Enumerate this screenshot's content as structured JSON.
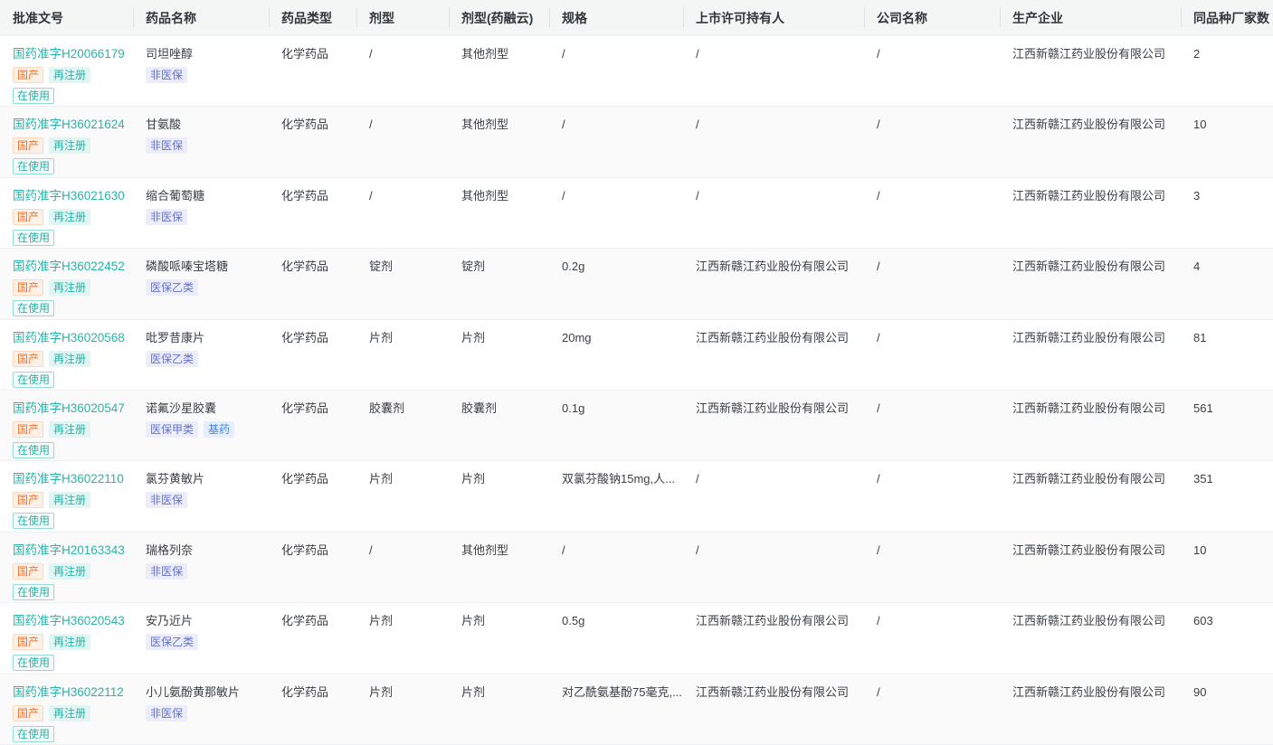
{
  "colors": {
    "accent_teal": "#2bb3a9",
    "tag_orange": "#f0722a",
    "tag_purple": "#6472d2",
    "tag_blue": "#4585e5",
    "header_bg": "#f4f6f6",
    "stripe_bg": "#fafafa",
    "row_border": "#ecf0f2"
  },
  "table": {
    "columns": [
      {
        "key": "approval",
        "label": "批准文号"
      },
      {
        "key": "name",
        "label": "药品名称"
      },
      {
        "key": "type",
        "label": "药品类型"
      },
      {
        "key": "form",
        "label": "剂型"
      },
      {
        "key": "form_yry",
        "label": "剂型(药融云)"
      },
      {
        "key": "spec",
        "label": "规格"
      },
      {
        "key": "holder",
        "label": "上市许可持有人"
      },
      {
        "key": "company",
        "label": "公司名称"
      },
      {
        "key": "manufacturer",
        "label": "生产企业"
      },
      {
        "key": "same_count",
        "label": "同品种厂家数"
      }
    ],
    "rows": [
      {
        "approval_no": "国药准字H20066179",
        "approval_tags": [
          {
            "label": "国产",
            "type": "orange",
            "name": "tag-domestic"
          },
          {
            "label": "再注册",
            "type": "teal",
            "name": "tag-reregistered"
          },
          {
            "label": "在使用",
            "type": "teal-outline",
            "name": "tag-in-use"
          }
        ],
        "name": "司坦唑醇",
        "name_tags": [
          {
            "label": "非医保",
            "type": "purple",
            "name": "tag-non-medicare"
          }
        ],
        "type": "化学药品",
        "form": "/",
        "form_yry": "其他剂型",
        "spec": "/",
        "holder": "/",
        "company": "/",
        "manufacturer": "江西新赣江药业股份有限公司",
        "same_count": "2"
      },
      {
        "approval_no": "国药准字H36021624",
        "approval_tags": [
          {
            "label": "国产",
            "type": "orange",
            "name": "tag-domestic"
          },
          {
            "label": "再注册",
            "type": "teal",
            "name": "tag-reregistered"
          },
          {
            "label": "在使用",
            "type": "teal-outline",
            "name": "tag-in-use"
          }
        ],
        "name": "甘氨酸",
        "name_tags": [
          {
            "label": "非医保",
            "type": "purple",
            "name": "tag-non-medicare"
          }
        ],
        "type": "化学药品",
        "form": "/",
        "form_yry": "其他剂型",
        "spec": "/",
        "holder": "/",
        "company": "/",
        "manufacturer": "江西新赣江药业股份有限公司",
        "same_count": "10"
      },
      {
        "approval_no": "国药准字H36021630",
        "approval_tags": [
          {
            "label": "国产",
            "type": "orange",
            "name": "tag-domestic"
          },
          {
            "label": "再注册",
            "type": "teal",
            "name": "tag-reregistered"
          },
          {
            "label": "在使用",
            "type": "teal-outline",
            "name": "tag-in-use"
          }
        ],
        "name": "缩合葡萄糖",
        "name_tags": [
          {
            "label": "非医保",
            "type": "purple",
            "name": "tag-non-medicare"
          }
        ],
        "type": "化学药品",
        "form": "/",
        "form_yry": "其他剂型",
        "spec": "/",
        "holder": "/",
        "company": "/",
        "manufacturer": "江西新赣江药业股份有限公司",
        "same_count": "3"
      },
      {
        "approval_no": "国药准字H36022452",
        "approval_tags": [
          {
            "label": "国产",
            "type": "orange",
            "name": "tag-domestic"
          },
          {
            "label": "再注册",
            "type": "teal",
            "name": "tag-reregistered"
          },
          {
            "label": "在使用",
            "type": "teal-outline",
            "name": "tag-in-use"
          }
        ],
        "name": "磷酸哌嗪宝塔糖",
        "name_tags": [
          {
            "label": "医保乙类",
            "type": "purple",
            "name": "tag-medicare-class-b"
          }
        ],
        "type": "化学药品",
        "form": "锭剂",
        "form_yry": "锭剂",
        "spec": "0.2g",
        "holder": "江西新赣江药业股份有限公司",
        "company": "/",
        "manufacturer": "江西新赣江药业股份有限公司",
        "same_count": "4"
      },
      {
        "approval_no": "国药准字H36020568",
        "approval_tags": [
          {
            "label": "国产",
            "type": "orange",
            "name": "tag-domestic"
          },
          {
            "label": "再注册",
            "type": "teal",
            "name": "tag-reregistered"
          },
          {
            "label": "在使用",
            "type": "teal-outline",
            "name": "tag-in-use"
          }
        ],
        "name": "吡罗昔康片",
        "name_tags": [
          {
            "label": "医保乙类",
            "type": "purple",
            "name": "tag-medicare-class-b"
          }
        ],
        "type": "化学药品",
        "form": "片剂",
        "form_yry": "片剂",
        "spec": "20mg",
        "holder": "江西新赣江药业股份有限公司",
        "company": "/",
        "manufacturer": "江西新赣江药业股份有限公司",
        "same_count": "81"
      },
      {
        "approval_no": "国药准字H36020547",
        "approval_tags": [
          {
            "label": "国产",
            "type": "orange",
            "name": "tag-domestic"
          },
          {
            "label": "再注册",
            "type": "teal",
            "name": "tag-reregistered"
          },
          {
            "label": "在使用",
            "type": "teal-outline",
            "name": "tag-in-use"
          }
        ],
        "name": "诺氟沙星胶囊",
        "name_tags": [
          {
            "label": "医保甲类",
            "type": "purple",
            "name": "tag-medicare-class-a"
          },
          {
            "label": "基药",
            "type": "blue",
            "name": "tag-essential-drug"
          }
        ],
        "type": "化学药品",
        "form": "胶囊剂",
        "form_yry": "胶囊剂",
        "spec": "0.1g",
        "holder": "江西新赣江药业股份有限公司",
        "company": "/",
        "manufacturer": "江西新赣江药业股份有限公司",
        "same_count": "561"
      },
      {
        "approval_no": "国药准字H36022110",
        "approval_tags": [
          {
            "label": "国产",
            "type": "orange",
            "name": "tag-domestic"
          },
          {
            "label": "再注册",
            "type": "teal",
            "name": "tag-reregistered"
          },
          {
            "label": "在使用",
            "type": "teal-outline",
            "name": "tag-in-use"
          }
        ],
        "name": "氯芬黄敏片",
        "name_tags": [
          {
            "label": "非医保",
            "type": "purple",
            "name": "tag-non-medicare"
          }
        ],
        "type": "化学药品",
        "form": "片剂",
        "form_yry": "片剂",
        "spec": "双氯芬酸钠15mg,人...",
        "holder": "/",
        "company": "/",
        "manufacturer": "江西新赣江药业股份有限公司",
        "same_count": "351"
      },
      {
        "approval_no": "国药准字H20163343",
        "approval_tags": [
          {
            "label": "国产",
            "type": "orange",
            "name": "tag-domestic"
          },
          {
            "label": "再注册",
            "type": "teal",
            "name": "tag-reregistered"
          },
          {
            "label": "在使用",
            "type": "teal-outline",
            "name": "tag-in-use"
          }
        ],
        "name": "瑞格列奈",
        "name_tags": [
          {
            "label": "非医保",
            "type": "purple",
            "name": "tag-non-medicare"
          }
        ],
        "type": "化学药品",
        "form": "/",
        "form_yry": "其他剂型",
        "spec": "/",
        "holder": "/",
        "company": "/",
        "manufacturer": "江西新赣江药业股份有限公司",
        "same_count": "10"
      },
      {
        "approval_no": "国药准字H36020543",
        "approval_tags": [
          {
            "label": "国产",
            "type": "orange",
            "name": "tag-domestic"
          },
          {
            "label": "再注册",
            "type": "teal",
            "name": "tag-reregistered"
          },
          {
            "label": "在使用",
            "type": "teal-outline",
            "name": "tag-in-use"
          }
        ],
        "name": "安乃近片",
        "name_tags": [
          {
            "label": "医保乙类",
            "type": "purple",
            "name": "tag-medicare-class-b"
          }
        ],
        "type": "化学药品",
        "form": "片剂",
        "form_yry": "片剂",
        "spec": "0.5g",
        "holder": "江西新赣江药业股份有限公司",
        "company": "/",
        "manufacturer": "江西新赣江药业股份有限公司",
        "same_count": "603"
      },
      {
        "approval_no": "国药准字H36022112",
        "approval_tags": [
          {
            "label": "国产",
            "type": "orange",
            "name": "tag-domestic"
          },
          {
            "label": "再注册",
            "type": "teal",
            "name": "tag-reregistered"
          },
          {
            "label": "在使用",
            "type": "teal-outline",
            "name": "tag-in-use"
          }
        ],
        "name": "小儿氨酚黄那敏片",
        "name_tags": [
          {
            "label": "非医保",
            "type": "purple",
            "name": "tag-non-medicare"
          }
        ],
        "type": "化学药品",
        "form": "片剂",
        "form_yry": "片剂",
        "spec": "对乙酰氨基酚75毫克,...",
        "holder": "江西新赣江药业股份有限公司",
        "company": "/",
        "manufacturer": "江西新赣江药业股份有限公司",
        "same_count": "90"
      }
    ]
  }
}
